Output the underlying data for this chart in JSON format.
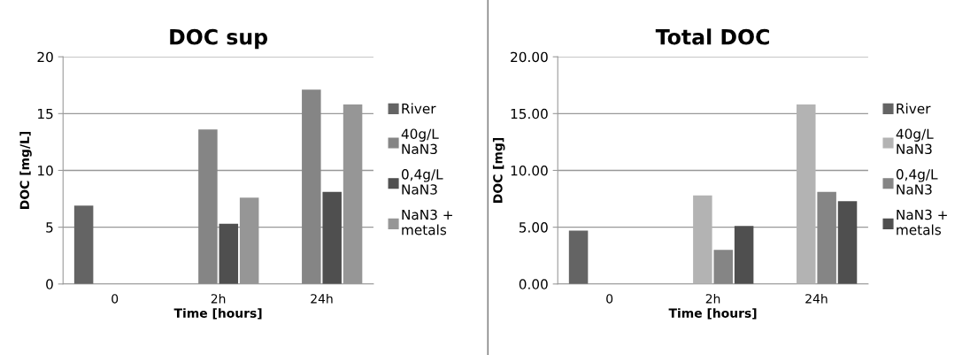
{
  "chart_data": [
    {
      "type": "bar",
      "title": "DOC sup",
      "xlabel": "Time [hours]",
      "ylabel": "DOC [mg/L]",
      "categories": [
        "0",
        "2h",
        "24h"
      ],
      "series": [
        {
          "name": "River",
          "color": "#646464",
          "values": [
            6.9,
            null,
            null
          ]
        },
        {
          "name": "40g/L\nNaN3",
          "color": "#858585",
          "values": [
            null,
            13.6,
            17.1
          ]
        },
        {
          "name": "0,4g/L\nNaN3",
          "color": "#4f4f4f",
          "values": [
            null,
            5.3,
            8.1
          ]
        },
        {
          "name": "NaN3 +\nmetals",
          "color": "#969696",
          "values": [
            null,
            7.6,
            15.8
          ]
        }
      ],
      "ylim": [
        0,
        20
      ],
      "yticks": [
        0,
        5,
        10,
        15,
        20
      ],
      "grid": "y",
      "legend": "right"
    },
    {
      "type": "bar",
      "title": "Total DOC",
      "xlabel": "Time [hours]",
      "ylabel": "DOC [mg]",
      "categories": [
        "0",
        "2h",
        "24h"
      ],
      "series": [
        {
          "name": "River",
          "color": "#646464",
          "values": [
            4.7,
            null,
            null
          ]
        },
        {
          "name": "40g/L\nNaN3",
          "color": "#b3b3b3",
          "values": [
            null,
            7.8,
            15.8
          ]
        },
        {
          "name": "0,4g/L\nNaN3",
          "color": "#858585",
          "values": [
            null,
            3.0,
            8.1
          ]
        },
        {
          "name": "NaN3 +\nmetals",
          "color": "#4f4f4f",
          "values": [
            null,
            5.1,
            7.3
          ]
        }
      ],
      "ylim": [
        0,
        20
      ],
      "yticks": [
        {
          "value": 0,
          "label": "0.00"
        },
        {
          "value": 5,
          "label": "5.00"
        },
        {
          "value": 10,
          "label": "10.00"
        },
        {
          "value": 15,
          "label": "15.00"
        },
        {
          "value": 20,
          "label": "20.00"
        }
      ],
      "grid": "y",
      "legend": "right"
    }
  ]
}
